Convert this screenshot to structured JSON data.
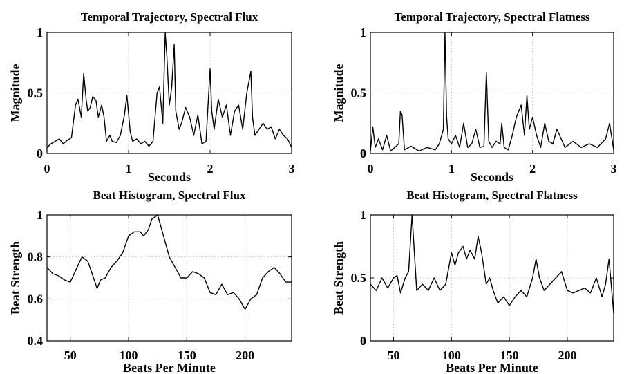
{
  "chart_data": [
    {
      "type": "line",
      "title": "Temporal Trajectory, Spectral Flux",
      "xlabel": "Seconds",
      "ylabel": "Magnitude",
      "xlim": [
        0,
        3
      ],
      "ylim": [
        0,
        1
      ],
      "xticks": [
        0,
        1,
        2,
        3
      ],
      "xtick_labels": [
        "0",
        "1",
        "2",
        "3"
      ],
      "yticks": [
        0,
        0.5,
        1
      ],
      "ytick_labels": [
        "0",
        "0.5",
        "1"
      ],
      "grid": true,
      "series": [
        {
          "x": [
            0,
            0.05,
            0.1,
            0.15,
            0.2,
            0.25,
            0.3,
            0.35,
            0.38,
            0.42,
            0.45,
            0.48,
            0.5,
            0.53,
            0.56,
            0.6,
            0.63,
            0.67,
            0.7,
            0.73,
            0.77,
            0.8,
            0.85,
            0.9,
            0.95,
            0.98,
            1.02,
            1.05,
            1.1,
            1.15,
            1.2,
            1.25,
            1.3,
            1.35,
            1.38,
            1.42,
            1.45,
            1.47,
            1.5,
            1.53,
            1.56,
            1.58,
            1.62,
            1.65,
            1.7,
            1.75,
            1.8,
            1.85,
            1.9,
            1.95,
            2.0,
            2.02,
            2.05,
            2.1,
            2.15,
            2.2,
            2.25,
            2.3,
            2.35,
            2.4,
            2.45,
            2.5,
            2.52,
            2.55,
            2.6,
            2.65,
            2.7,
            2.75,
            2.8,
            2.85,
            2.9,
            2.95,
            3.0
          ],
          "y": [
            0.05,
            0.08,
            0.1,
            0.12,
            0.08,
            0.11,
            0.13,
            0.4,
            0.45,
            0.3,
            0.66,
            0.45,
            0.35,
            0.38,
            0.47,
            0.44,
            0.3,
            0.4,
            0.3,
            0.1,
            0.15,
            0.1,
            0.09,
            0.15,
            0.32,
            0.48,
            0.18,
            0.1,
            0.12,
            0.08,
            0.1,
            0.06,
            0.1,
            0.5,
            0.55,
            0.25,
            1.0,
            0.8,
            0.4,
            0.55,
            0.9,
            0.35,
            0.2,
            0.25,
            0.38,
            0.3,
            0.15,
            0.32,
            0.08,
            0.1,
            0.7,
            0.35,
            0.2,
            0.45,
            0.3,
            0.4,
            0.15,
            0.35,
            0.4,
            0.2,
            0.5,
            0.68,
            0.3,
            0.15,
            0.2,
            0.25,
            0.2,
            0.22,
            0.12,
            0.2,
            0.15,
            0.12,
            0.05
          ]
        }
      ]
    },
    {
      "type": "line",
      "title": "Temporal Trajectory, Spectral Flatness",
      "xlabel": "Seconds",
      "ylabel": "Magnitude",
      "xlim": [
        0,
        3
      ],
      "ylim": [
        0,
        1
      ],
      "xticks": [
        0,
        1,
        2,
        3
      ],
      "xtick_labels": [
        "0",
        "1",
        "2",
        "3"
      ],
      "yticks": [
        0,
        0.5,
        1
      ],
      "ytick_labels": [
        "0",
        "0.5",
        "1"
      ],
      "grid": true,
      "series": [
        {
          "x": [
            0,
            0.03,
            0.06,
            0.1,
            0.15,
            0.2,
            0.25,
            0.3,
            0.35,
            0.37,
            0.39,
            0.42,
            0.5,
            0.6,
            0.7,
            0.8,
            0.85,
            0.9,
            0.92,
            0.94,
            0.96,
            1.0,
            1.05,
            1.1,
            1.15,
            1.2,
            1.25,
            1.3,
            1.35,
            1.4,
            1.43,
            1.46,
            1.5,
            1.55,
            1.6,
            1.62,
            1.65,
            1.7,
            1.75,
            1.8,
            1.83,
            1.86,
            1.9,
            1.93,
            1.96,
            2.0,
            2.05,
            2.1,
            2.15,
            2.2,
            2.25,
            2.3,
            2.4,
            2.5,
            2.6,
            2.7,
            2.8,
            2.9,
            2.95,
            3.0
          ],
          "y": [
            0.02,
            0.22,
            0.05,
            0.12,
            0.03,
            0.15,
            0.02,
            0.05,
            0.08,
            0.35,
            0.32,
            0.03,
            0.06,
            0.02,
            0.05,
            0.03,
            0.08,
            0.2,
            1.0,
            0.3,
            0.12,
            0.08,
            0.15,
            0.05,
            0.25,
            0.05,
            0.08,
            0.2,
            0.05,
            0.06,
            0.67,
            0.1,
            0.05,
            0.1,
            0.08,
            0.25,
            0.05,
            0.03,
            0.15,
            0.3,
            0.35,
            0.4,
            0.15,
            0.48,
            0.2,
            0.3,
            0.15,
            0.05,
            0.25,
            0.1,
            0.08,
            0.2,
            0.05,
            0.1,
            0.05,
            0.08,
            0.05,
            0.12,
            0.25,
            0.03
          ]
        }
      ]
    },
    {
      "type": "line",
      "title": "Beat Histogram, Spectral Flux",
      "xlabel": "Beats Per Minute",
      "ylabel": "Beat Strength",
      "xlim": [
        30,
        240
      ],
      "ylim": [
        0.4,
        1
      ],
      "xticks": [
        50,
        100,
        150,
        200
      ],
      "xtick_labels": [
        "50",
        "100",
        "150",
        "200"
      ],
      "yticks": [
        0.4,
        0.6,
        0.8,
        1
      ],
      "ytick_labels": [
        "0.4",
        "0.6",
        "0.8",
        "1"
      ],
      "grid": true,
      "series": [
        {
          "x": [
            30,
            35,
            40,
            45,
            50,
            55,
            60,
            65,
            70,
            73,
            76,
            80,
            85,
            90,
            95,
            100,
            105,
            110,
            113,
            117,
            120,
            125,
            130,
            135,
            140,
            145,
            150,
            155,
            160,
            165,
            170,
            175,
            180,
            185,
            190,
            195,
            200,
            205,
            210,
            215,
            220,
            225,
            230,
            235,
            240
          ],
          "y": [
            0.75,
            0.72,
            0.71,
            0.69,
            0.68,
            0.74,
            0.8,
            0.78,
            0.7,
            0.65,
            0.69,
            0.7,
            0.75,
            0.78,
            0.82,
            0.9,
            0.92,
            0.92,
            0.9,
            0.93,
            0.98,
            1.0,
            0.9,
            0.8,
            0.75,
            0.7,
            0.7,
            0.73,
            0.72,
            0.7,
            0.63,
            0.62,
            0.67,
            0.62,
            0.63,
            0.6,
            0.55,
            0.6,
            0.62,
            0.7,
            0.73,
            0.75,
            0.72,
            0.68,
            0.68
          ]
        }
      ]
    },
    {
      "type": "line",
      "title": "Beat Histogram, Spectral Flatness",
      "xlabel": "Beats Per Minute",
      "ylabel": "Beat Strength",
      "xlim": [
        30,
        240
      ],
      "ylim": [
        0,
        1
      ],
      "xticks": [
        50,
        100,
        150,
        200
      ],
      "xtick_labels": [
        "50",
        "100",
        "150",
        "200"
      ],
      "yticks": [
        0,
        0.5,
        1
      ],
      "ytick_labels": [
        "0",
        "0.5",
        "1"
      ],
      "grid": true,
      "series": [
        {
          "x": [
            30,
            35,
            40,
            45,
            50,
            53,
            56,
            60,
            63,
            66,
            70,
            75,
            80,
            85,
            90,
            95,
            100,
            103,
            106,
            110,
            113,
            116,
            120,
            123,
            126,
            130,
            133,
            136,
            140,
            145,
            150,
            155,
            160,
            165,
            170,
            173,
            176,
            180,
            185,
            190,
            195,
            200,
            205,
            210,
            215,
            220,
            225,
            230,
            233,
            236,
            240
          ],
          "y": [
            0.45,
            0.4,
            0.5,
            0.42,
            0.5,
            0.52,
            0.38,
            0.5,
            0.55,
            1.0,
            0.4,
            0.45,
            0.4,
            0.5,
            0.4,
            0.45,
            0.7,
            0.6,
            0.7,
            0.75,
            0.65,
            0.72,
            0.65,
            0.83,
            0.7,
            0.45,
            0.5,
            0.4,
            0.3,
            0.35,
            0.28,
            0.35,
            0.4,
            0.35,
            0.5,
            0.65,
            0.5,
            0.4,
            0.45,
            0.5,
            0.55,
            0.4,
            0.38,
            0.4,
            0.42,
            0.38,
            0.5,
            0.35,
            0.45,
            0.65,
            0.22
          ]
        }
      ]
    }
  ]
}
